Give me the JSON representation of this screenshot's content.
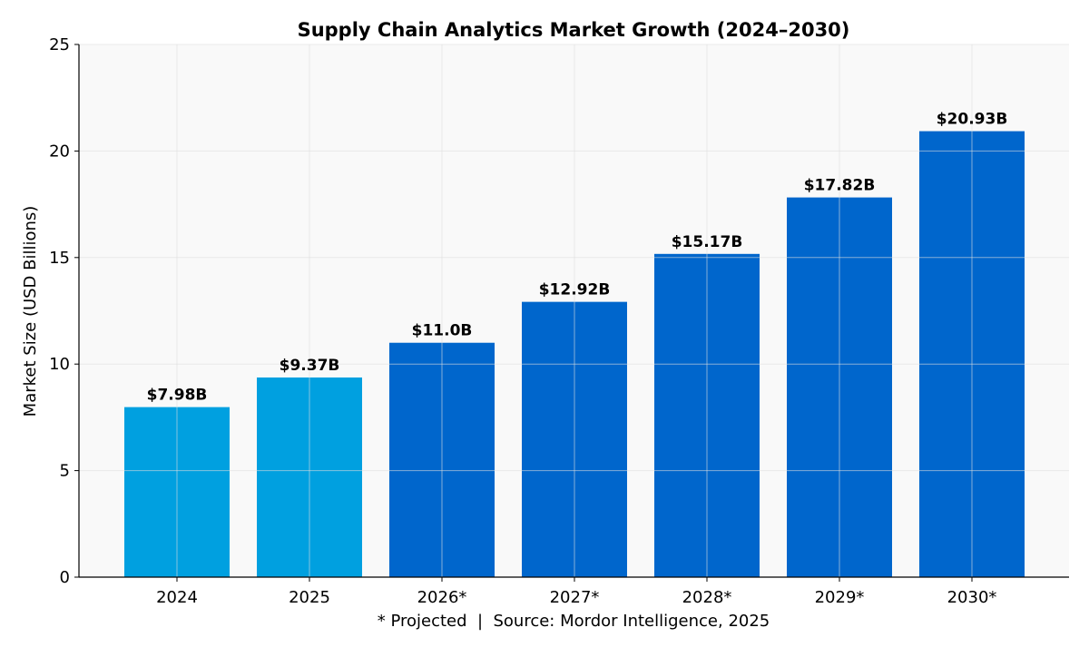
{
  "chart_data": {
    "type": "bar",
    "title": "Supply Chain Analytics Market Growth (2024–2030)",
    "xlabel": "* Projected  |  Source: Mordor Intelligence, 2025",
    "ylabel": "Market Size (USD Billions)",
    "categories": [
      "2024",
      "2025",
      "2026*",
      "2027*",
      "2028*",
      "2029*",
      "2030*"
    ],
    "values": [
      7.98,
      9.37,
      11.0,
      12.92,
      15.17,
      17.82,
      20.93
    ],
    "data_labels": [
      "$7.98B",
      "$9.37B",
      "$11.0B",
      "$12.92B",
      "$15.17B",
      "$17.82B",
      "$20.93B"
    ],
    "projected": [
      false,
      false,
      true,
      true,
      true,
      true,
      true
    ],
    "ylim": [
      0,
      25
    ],
    "yticks": [
      0,
      5,
      10,
      15,
      20,
      25
    ],
    "grid": true,
    "colors": {
      "actual": "#00A0E0",
      "projected": "#0066CC",
      "plot_background": "#F9F9F9",
      "grid": "#DDDDDD"
    }
  }
}
